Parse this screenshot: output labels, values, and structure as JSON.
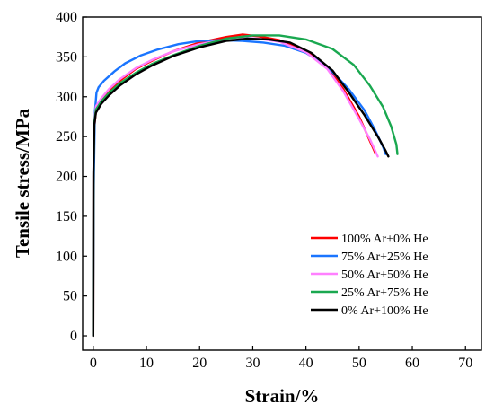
{
  "chart_data": {
    "type": "line",
    "title": "",
    "xlabel": "Strain/%",
    "ylabel": "Tensile stress/MPa",
    "xlim": [
      -2,
      73
    ],
    "ylim": [
      -18,
      400
    ],
    "x_ticks": [
      0,
      10,
      20,
      30,
      40,
      50,
      60,
      70
    ],
    "y_ticks": [
      0,
      50,
      100,
      150,
      200,
      250,
      300,
      350,
      400
    ],
    "grid": false,
    "legend_position": "bottom-right",
    "series": [
      {
        "name": "100% Ar+0% He",
        "color": "#ff0000",
        "points": [
          [
            0,
            0
          ],
          [
            0.05,
            200
          ],
          [
            0.2,
            262
          ],
          [
            0.5,
            282
          ],
          [
            1.5,
            295
          ],
          [
            3,
            307
          ],
          [
            5,
            320
          ],
          [
            8,
            335
          ],
          [
            11,
            345
          ],
          [
            15,
            357
          ],
          [
            20,
            368
          ],
          [
            25,
            375
          ],
          [
            28,
            378
          ],
          [
            31,
            376
          ],
          [
            35,
            371
          ],
          [
            40,
            358
          ],
          [
            44,
            338
          ],
          [
            47,
            310
          ],
          [
            50,
            275
          ],
          [
            52,
            245
          ],
          [
            53,
            230
          ]
        ]
      },
      {
        "name": "75% Ar+25% He",
        "color": "#1a75ff",
        "points": [
          [
            0,
            60
          ],
          [
            0.1,
            190
          ],
          [
            0.3,
            280
          ],
          [
            0.6,
            305
          ],
          [
            1,
            312
          ],
          [
            2,
            320
          ],
          [
            4,
            332
          ],
          [
            6,
            342
          ],
          [
            9,
            352
          ],
          [
            12,
            359
          ],
          [
            16,
            366
          ],
          [
            20,
            370
          ],
          [
            24,
            371
          ],
          [
            28,
            370
          ],
          [
            32,
            368
          ],
          [
            36,
            364
          ],
          [
            40,
            355
          ],
          [
            44,
            338
          ],
          [
            48,
            310
          ],
          [
            51,
            283
          ],
          [
            53,
            258
          ],
          [
            54.5,
            237
          ],
          [
            55,
            228
          ]
        ]
      },
      {
        "name": "50% Ar+50% He",
        "color": "#ff80ff",
        "points": [
          [
            0,
            0
          ],
          [
            0.05,
            210
          ],
          [
            0.2,
            270
          ],
          [
            0.5,
            288
          ],
          [
            1.5,
            298
          ],
          [
            3,
            310
          ],
          [
            5,
            322
          ],
          [
            8,
            336
          ],
          [
            11,
            346
          ],
          [
            15,
            357
          ],
          [
            20,
            366
          ],
          [
            25,
            372
          ],
          [
            28,
            374
          ],
          [
            31,
            373
          ],
          [
            35,
            369
          ],
          [
            40,
            356
          ],
          [
            44,
            335
          ],
          [
            47,
            307
          ],
          [
            50,
            272
          ],
          [
            52,
            247
          ],
          [
            53.5,
            225
          ]
        ]
      },
      {
        "name": "25% Ar+75% He",
        "color": "#1aa850",
        "points": [
          [
            0,
            0
          ],
          [
            0.05,
            205
          ],
          [
            0.2,
            268
          ],
          [
            0.5,
            284
          ],
          [
            1.5,
            294
          ],
          [
            3,
            305
          ],
          [
            5,
            317
          ],
          [
            8,
            330
          ],
          [
            11,
            341
          ],
          [
            15,
            352
          ],
          [
            20,
            364
          ],
          [
            25,
            373
          ],
          [
            30,
            377
          ],
          [
            35,
            377
          ],
          [
            40,
            372
          ],
          [
            45,
            360
          ],
          [
            49,
            340
          ],
          [
            52,
            314
          ],
          [
            54.5,
            287
          ],
          [
            56,
            263
          ],
          [
            57,
            240
          ],
          [
            57.2,
            228
          ]
        ]
      },
      {
        "name": "0% Ar+100% He",
        "color": "#000000",
        "points": [
          [
            0,
            0
          ],
          [
            0.05,
            205
          ],
          [
            0.2,
            265
          ],
          [
            0.5,
            280
          ],
          [
            1.5,
            291
          ],
          [
            3,
            302
          ],
          [
            5,
            314
          ],
          [
            8,
            328
          ],
          [
            11,
            339
          ],
          [
            15,
            351
          ],
          [
            20,
            362
          ],
          [
            25,
            370
          ],
          [
            29,
            373
          ],
          [
            33,
            372
          ],
          [
            37,
            368
          ],
          [
            41,
            355
          ],
          [
            45,
            333
          ],
          [
            48,
            306
          ],
          [
            51,
            277
          ],
          [
            53.5,
            250
          ],
          [
            55,
            232
          ],
          [
            55.5,
            225
          ]
        ]
      }
    ]
  }
}
